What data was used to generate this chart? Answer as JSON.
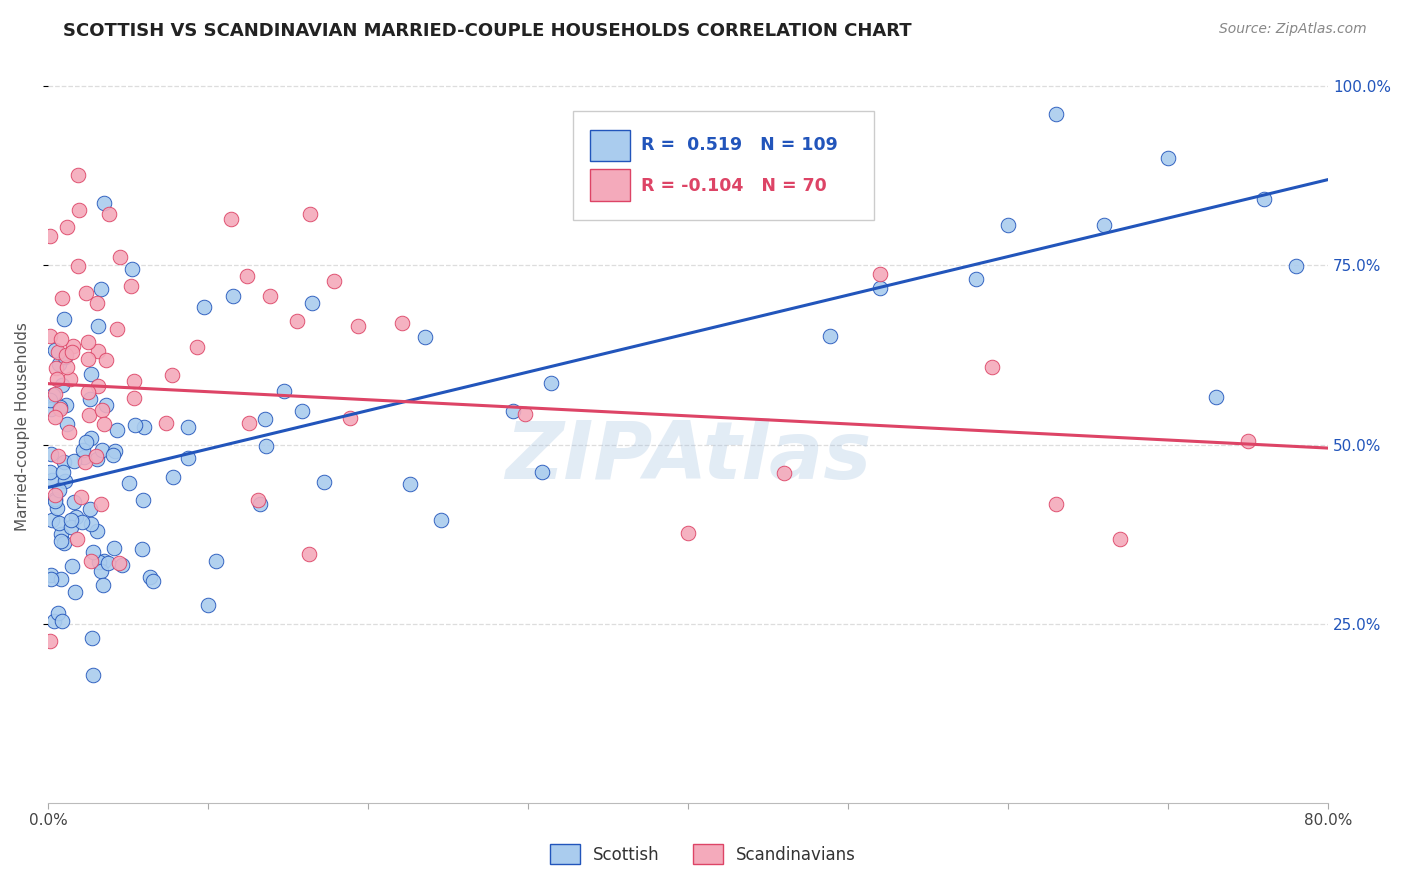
{
  "title": "SCOTTISH VS SCANDINAVIAN MARRIED-COUPLE HOUSEHOLDS CORRELATION CHART",
  "source": "Source: ZipAtlas.com",
  "ylabel": "Married-couple Households",
  "legend_labels": [
    "Scottish",
    "Scandinavians"
  ],
  "r_scottish": 0.519,
  "n_scottish": 109,
  "r_scandinavian": -0.104,
  "n_scandinavian": 70,
  "scottish_color": "#aaccee",
  "scandinavian_color": "#f4aabb",
  "trendline_scottish_color": "#2255bb",
  "trendline_scandinavian_color": "#dd4466",
  "background_color": "#ffffff",
  "watermark": "ZIPAtlas",
  "trendline_blue_y0": 0.44,
  "trendline_blue_y1": 0.87,
  "trendline_pink_y0": 0.585,
  "trendline_pink_y1": 0.495,
  "xlim": [
    0.0,
    0.8
  ],
  "ylim": [
    0.0,
    1.05
  ],
  "ytick_vals": [
    0.25,
    0.5,
    0.75,
    1.0
  ],
  "ytick_labels": [
    "25.0%",
    "50.0%",
    "75.0%",
    "100.0%"
  ]
}
